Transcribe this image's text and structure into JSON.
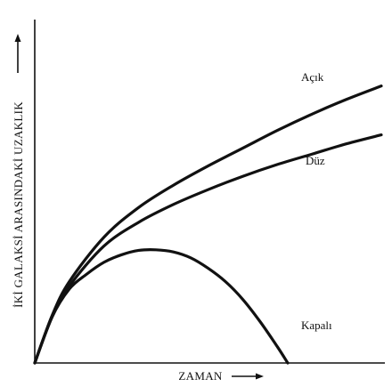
{
  "chart_data": {
    "type": "line",
    "title": "",
    "xlabel": "ZAMAN",
    "ylabel": "İKİ GALAKSİ ARASINDAKİ UZAKLIK",
    "xlim": [
      0,
      10
    ],
    "ylim": [
      0,
      10
    ],
    "grid": false,
    "axis_ticks": false,
    "series": [
      {
        "name": "Açık",
        "x": [
          0,
          0.5,
          1,
          2,
          3,
          4,
          5,
          6,
          7,
          8,
          9,
          10
        ],
        "y": [
          0,
          1.6,
          2.75,
          4.25,
          5.25,
          6.0,
          6.65,
          7.25,
          7.85,
          8.4,
          8.9,
          9.35
        ]
      },
      {
        "name": "Düz",
        "x": [
          0,
          0.5,
          1,
          2,
          3,
          4,
          5,
          6,
          7,
          8,
          9,
          10
        ],
        "y": [
          0,
          1.55,
          2.6,
          3.95,
          4.75,
          5.35,
          5.85,
          6.3,
          6.7,
          7.05,
          7.4,
          7.7
        ]
      },
      {
        "name": "Kapalı",
        "x": [
          0,
          0.5,
          1,
          1.5,
          2,
          2.5,
          3,
          3.5,
          4,
          4.5,
          5,
          5.5,
          6,
          6.5,
          7,
          7.3
        ],
        "y": [
          0,
          1.55,
          2.5,
          3.0,
          3.4,
          3.65,
          3.8,
          3.82,
          3.75,
          3.55,
          3.2,
          2.75,
          2.15,
          1.4,
          0.55,
          0
        ]
      }
    ]
  }
}
